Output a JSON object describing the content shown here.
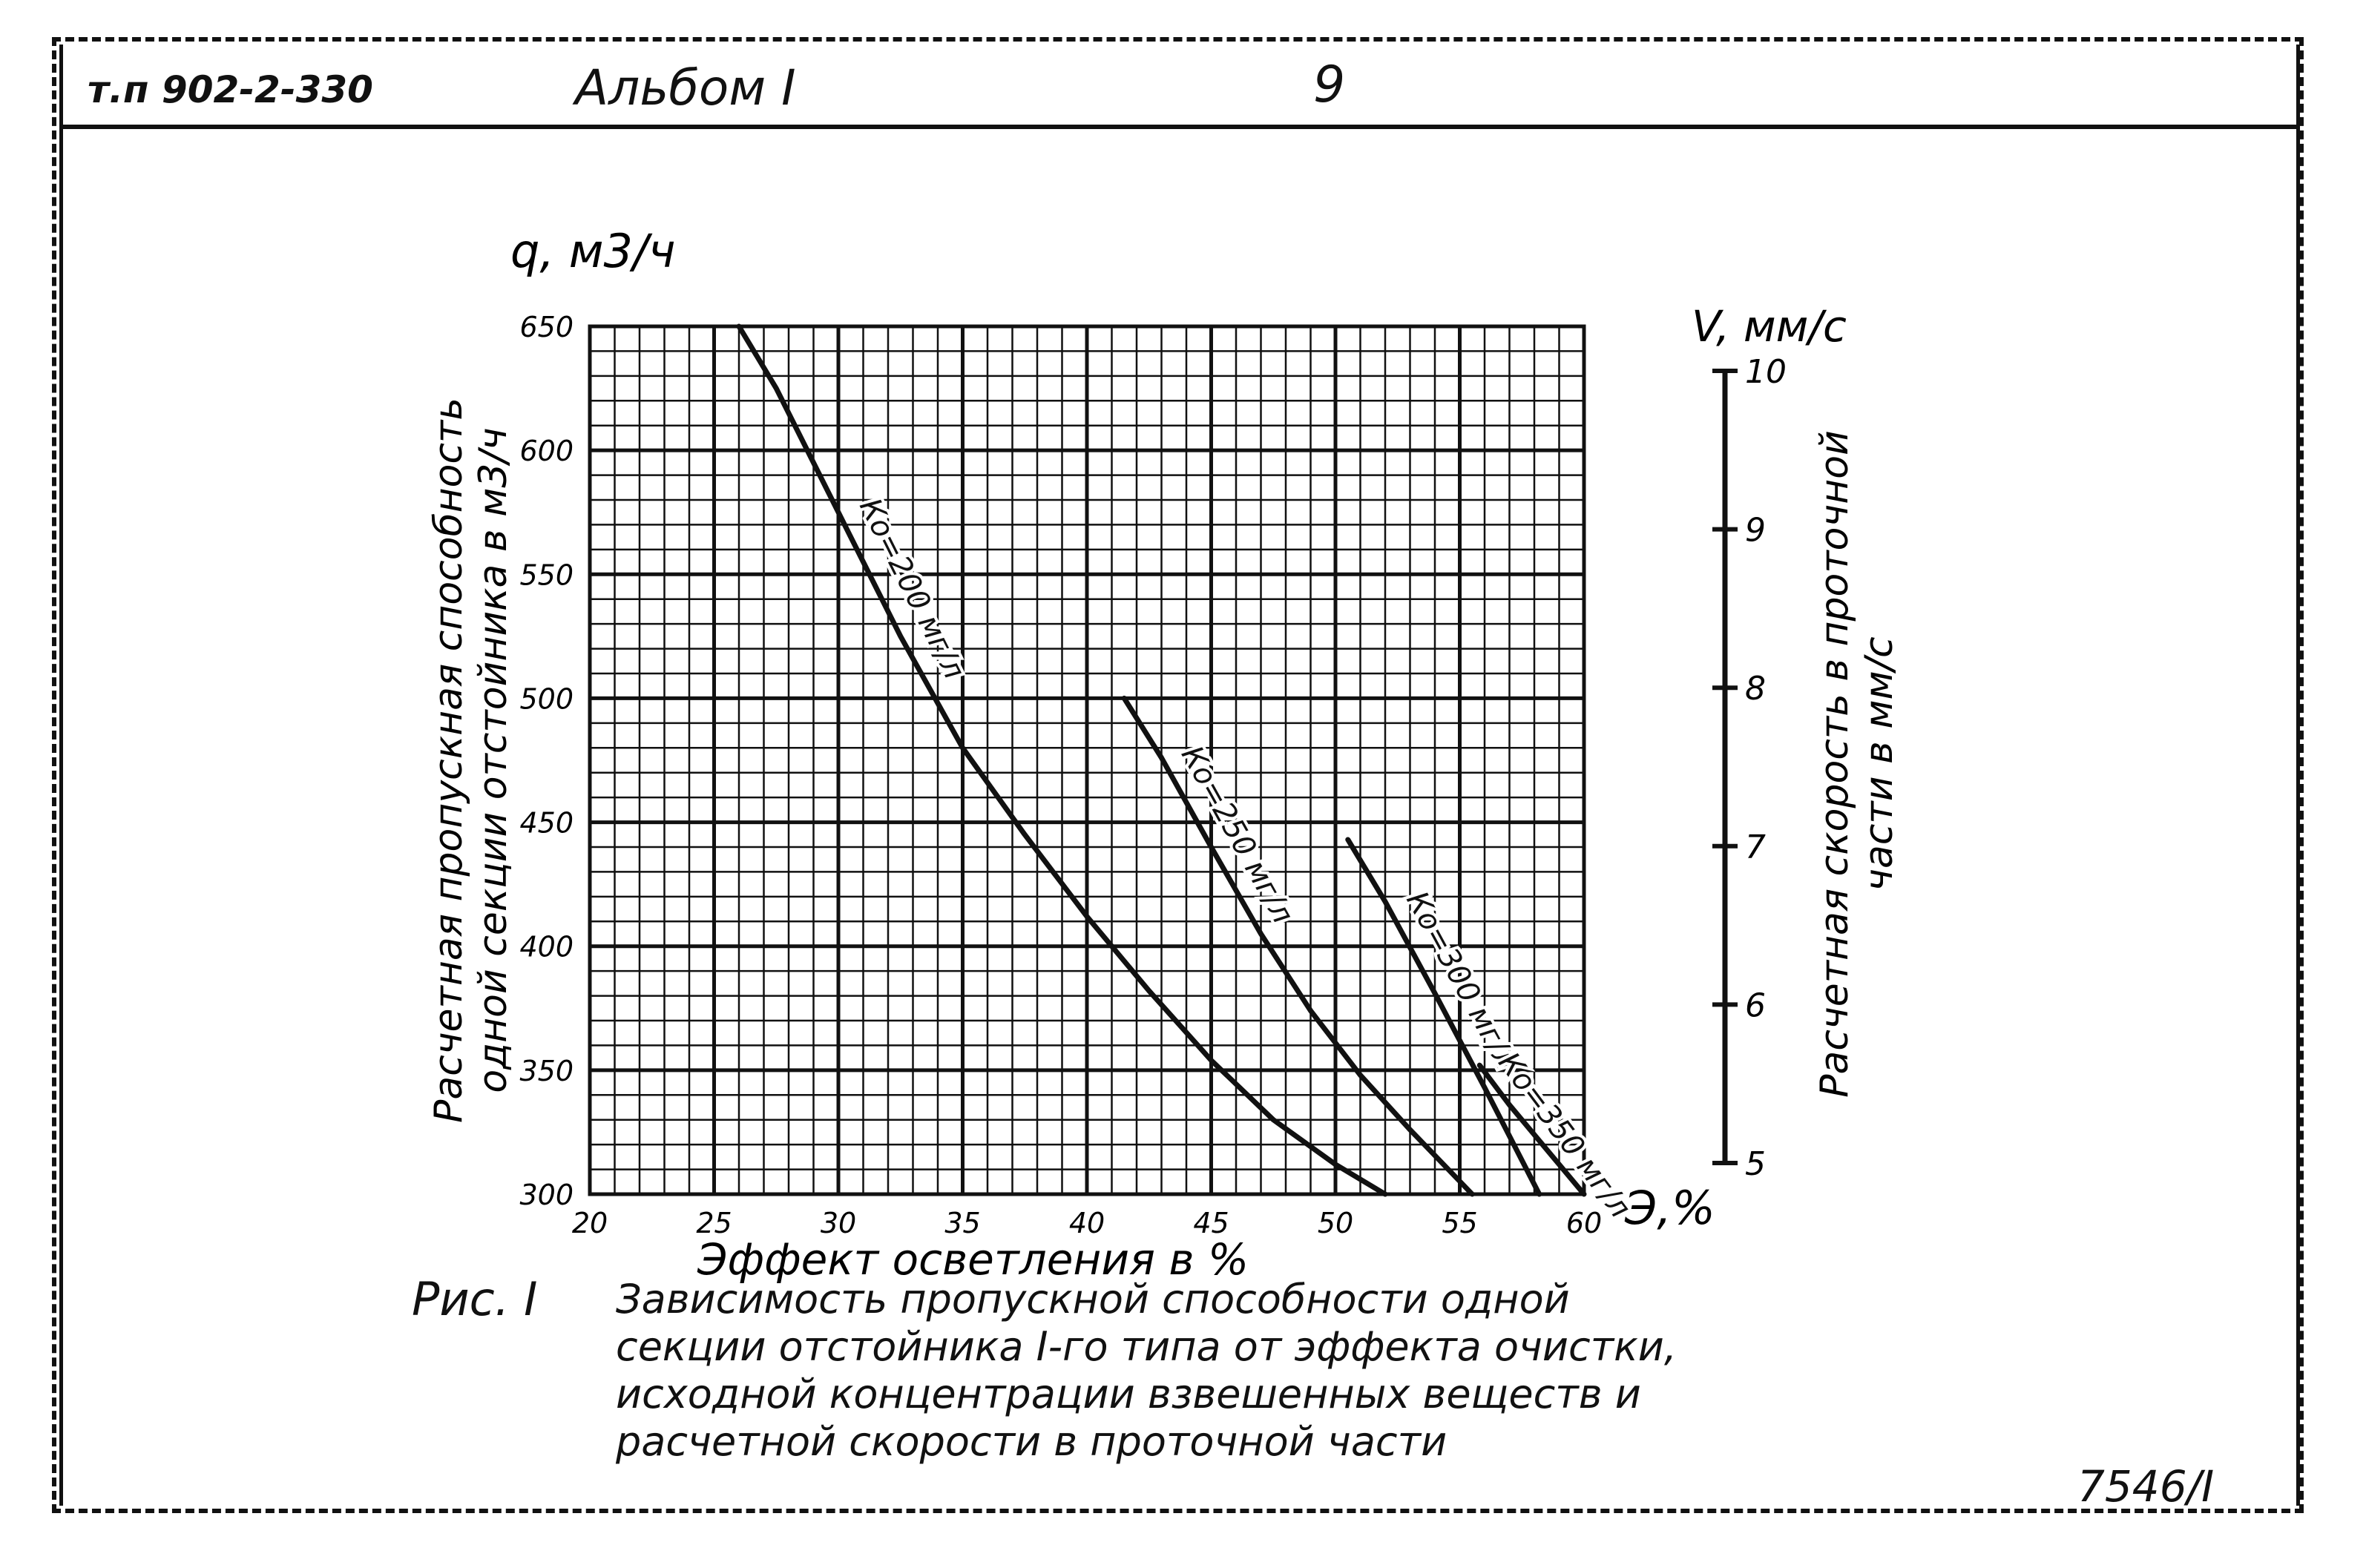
{
  "header": {
    "doc_code": "т.п 902-2-330",
    "album": "Альбом I",
    "page_number": "9"
  },
  "footer": {
    "inventory_number": "7546/I"
  },
  "caption": {
    "figure_label": "Рис. I",
    "lines": [
      "Зависимость пропускной способности одной",
      "секции отстойника I-го типа от эффекта очистки,",
      "исходной концентрации взвешенных веществ и",
      "расчетной скорости в проточной части"
    ]
  },
  "chart_data": {
    "type": "line",
    "xlabel": "Эффект осветления в %",
    "x_axis_symbol": "Э,%",
    "ylabel_lines": [
      "Расчетная пропускная способность",
      "одной секции отстойника в м3/ч"
    ],
    "y_axis_symbol": "q, м3/ч",
    "y2label_lines": [
      "Расчетная скорость в проточной",
      "части в мм/с"
    ],
    "y2_axis_symbol": "V, мм/с",
    "xlim": [
      20,
      60
    ],
    "ylim": [
      300,
      650
    ],
    "y2lim": [
      5,
      10
    ],
    "x_ticks": [
      20,
      25,
      30,
      35,
      40,
      45,
      50,
      55,
      60
    ],
    "y_ticks": [
      300,
      350,
      400,
      450,
      500,
      550,
      600,
      650
    ],
    "y2_ticks": [
      5,
      6,
      7,
      8,
      9,
      10
    ],
    "grid": true,
    "series": [
      {
        "name": "Ко=200 мг/л",
        "x": [
          26,
          27.5,
          30,
          32.5,
          35,
          37.5,
          40,
          42.5,
          45,
          47.5,
          50,
          52
        ],
        "y": [
          650,
          625,
          575,
          525,
          480,
          445,
          412,
          382,
          354,
          330,
          312,
          300
        ]
      },
      {
        "name": "Ко=250 мг/л",
        "x": [
          41.5,
          43,
          45,
          47,
          49,
          51,
          53,
          55.5
        ],
        "y": [
          500,
          476,
          440,
          405,
          374,
          348,
          326,
          300
        ]
      },
      {
        "name": "Ко=300 мг/л",
        "x": [
          50.5,
          52,
          54,
          56,
          58.2
        ],
        "y": [
          443,
          418,
          381,
          343,
          300
        ]
      },
      {
        "name": "Ко=350 мг/л",
        "x": [
          55.8,
          57,
          58.5,
          60
        ],
        "y": [
          352,
          336,
          318,
          300
        ]
      }
    ]
  }
}
